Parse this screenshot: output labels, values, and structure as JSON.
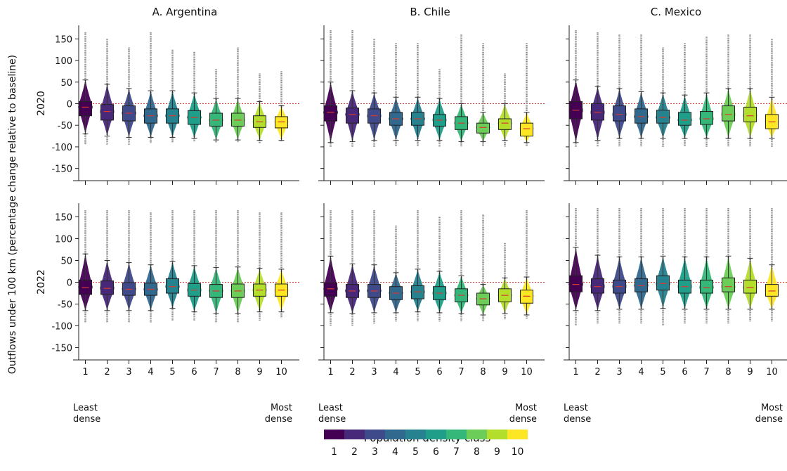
{
  "y_axis_label": "Outflows under 100 km (percentage change relative to baseline)",
  "row_labels": [
    "2020",
    "2022"
  ],
  "legend": {
    "title": "Population density class",
    "labels": [
      "1",
      "2",
      "3",
      "4",
      "5",
      "6",
      "7",
      "8",
      "9",
      "10"
    ]
  },
  "x_endpoint_labels": {
    "left": [
      "Least",
      "dense"
    ],
    "right": [
      "Most",
      "dense"
    ]
  },
  "colors": [
    "#440154",
    "#482878",
    "#3e4a89",
    "#31688e",
    "#26828e",
    "#1f9e89",
    "#35b779",
    "#6dcd59",
    "#b4de2c",
    "#fde725"
  ],
  "chart_data": [
    {
      "type": "violin",
      "title": "A. Argentina",
      "row": "2020",
      "categories": [
        "1",
        "2",
        "3",
        "4",
        "5",
        "6",
        "7",
        "8",
        "9",
        "10"
      ],
      "ylim": [
        -175,
        175
      ],
      "yticks": [
        -150,
        -100,
        -50,
        0,
        50,
        100,
        150
      ],
      "reference_line": 0,
      "median": [
        -8,
        -18,
        -22,
        -28,
        -28,
        -32,
        -38,
        -38,
        -42,
        -42
      ],
      "q1": [
        -28,
        -38,
        -40,
        -45,
        -45,
        -48,
        -52,
        -52,
        -55,
        -56
      ],
      "q3": [
        5,
        -2,
        -5,
        -12,
        -12,
        -16,
        -22,
        -22,
        -28,
        -30
      ],
      "whisker_low": [
        -70,
        -75,
        -78,
        -78,
        -78,
        -80,
        -84,
        -84,
        -85,
        -85
      ],
      "whisker_high": [
        55,
        45,
        35,
        30,
        30,
        25,
        12,
        12,
        5,
        -5
      ],
      "min": [
        -95,
        -95,
        -95,
        -92,
        -90,
        -88,
        -90,
        -90,
        -92,
        -88
      ],
      "max": [
        165,
        150,
        130,
        165,
        125,
        120,
        80,
        130,
        70,
        75
      ]
    },
    {
      "type": "violin",
      "title": "B. Chile",
      "row": "2020",
      "categories": [
        "1",
        "2",
        "3",
        "4",
        "5",
        "6",
        "7",
        "8",
        "9",
        "10"
      ],
      "ylim": [
        -175,
        175
      ],
      "yticks": [
        -150,
        -100,
        -50,
        0,
        50,
        100,
        150
      ],
      "reference_line": 0,
      "median": [
        -20,
        -25,
        -28,
        -35,
        -35,
        -38,
        -45,
        -55,
        -45,
        -58
      ],
      "q1": [
        -40,
        -45,
        -45,
        -50,
        -50,
        -52,
        -60,
        -68,
        -60,
        -75
      ],
      "q3": [
        -5,
        -10,
        -12,
        -20,
        -20,
        -25,
        -30,
        -45,
        -35,
        -45
      ],
      "whisker_low": [
        -90,
        -88,
        -85,
        -85,
        -85,
        -85,
        -88,
        -88,
        -85,
        -90
      ],
      "whisker_high": [
        50,
        30,
        25,
        15,
        15,
        12,
        0,
        -20,
        0,
        -20
      ],
      "min": [
        -100,
        -100,
        -100,
        -100,
        -100,
        -100,
        -100,
        -100,
        -100,
        -100
      ],
      "max": [
        170,
        170,
        150,
        140,
        140,
        80,
        160,
        140,
        70,
        140
      ]
    },
    {
      "type": "violin",
      "title": "C. Mexico",
      "row": "2020",
      "categories": [
        "1",
        "2",
        "3",
        "4",
        "5",
        "6",
        "7",
        "8",
        "9",
        "10"
      ],
      "ylim": [
        -175,
        175
      ],
      "yticks": [
        -150,
        -100,
        -50,
        0,
        50,
        100,
        150
      ],
      "reference_line": 0,
      "median": [
        -15,
        -20,
        -25,
        -30,
        -32,
        -38,
        -35,
        -25,
        -28,
        -42
      ],
      "q1": [
        -35,
        -38,
        -40,
        -45,
        -45,
        -50,
        -48,
        -40,
        -42,
        -58
      ],
      "q3": [
        5,
        0,
        -5,
        -12,
        -15,
        -20,
        -18,
        -5,
        -8,
        -25
      ],
      "whisker_low": [
        -90,
        -85,
        -80,
        -80,
        -80,
        -80,
        -80,
        -80,
        -80,
        -80
      ],
      "whisker_high": [
        55,
        40,
        35,
        28,
        25,
        20,
        25,
        35,
        35,
        15
      ],
      "min": [
        -100,
        -100,
        -100,
        -100,
        -100,
        -100,
        -100,
        -100,
        -100,
        -100
      ],
      "max": [
        170,
        165,
        160,
        160,
        130,
        140,
        155,
        160,
        160,
        150
      ]
    },
    {
      "type": "violin",
      "title": "",
      "row": "2022",
      "categories": [
        "1",
        "2",
        "3",
        "4",
        "5",
        "6",
        "7",
        "8",
        "9",
        "10"
      ],
      "ylim": [
        -175,
        175
      ],
      "yticks": [
        -150,
        -100,
        -50,
        0,
        50,
        100,
        150
      ],
      "reference_line": 0,
      "median": [
        -12,
        -14,
        -16,
        -16,
        -10,
        -18,
        -20,
        -20,
        -18,
        -18
      ],
      "q1": [
        -28,
        -28,
        -30,
        -30,
        -25,
        -32,
        -35,
        -35,
        -32,
        -32
      ],
      "q3": [
        5,
        3,
        -1,
        -2,
        8,
        -3,
        -5,
        -4,
        -4,
        -4
      ],
      "whisker_low": [
        -65,
        -65,
        -65,
        -65,
        -60,
        -68,
        -72,
        -72,
        -68,
        -68
      ],
      "whisker_high": [
        65,
        50,
        45,
        40,
        48,
        38,
        34,
        35,
        32,
        30
      ],
      "min": [
        -92,
        -92,
        -92,
        -92,
        -88,
        -88,
        -92,
        -92,
        -88,
        -82
      ],
      "max": [
        165,
        165,
        165,
        160,
        165,
        165,
        165,
        165,
        160,
        160
      ]
    },
    {
      "type": "violin",
      "title": "",
      "row": "2022",
      "categories": [
        "1",
        "2",
        "3",
        "4",
        "5",
        "6",
        "7",
        "8",
        "9",
        "10"
      ],
      "ylim": [
        -175,
        175
      ],
      "yticks": [
        -150,
        -100,
        -50,
        0,
        50,
        100,
        150
      ],
      "reference_line": 0,
      "median": [
        -15,
        -20,
        -20,
        -25,
        -22,
        -25,
        -30,
        -38,
        -30,
        -32
      ],
      "q1": [
        -32,
        -35,
        -35,
        -40,
        -38,
        -40,
        -45,
        -52,
        -45,
        -48
      ],
      "q3": [
        -2,
        -5,
        -5,
        -10,
        -8,
        -10,
        -15,
        -25,
        -15,
        -18
      ],
      "whisker_low": [
        -70,
        -72,
        -70,
        -70,
        -68,
        -70,
        -72,
        -75,
        -72,
        -75
      ],
      "whisker_high": [
        60,
        42,
        40,
        22,
        30,
        25,
        15,
        -5,
        10,
        12
      ],
      "min": [
        -100,
        -100,
        -95,
        -90,
        -90,
        -90,
        -90,
        -90,
        -85,
        -85
      ],
      "max": [
        165,
        165,
        165,
        130,
        165,
        150,
        165,
        155,
        90,
        165
      ]
    },
    {
      "type": "violin",
      "title": "",
      "row": "2022",
      "categories": [
        "1",
        "2",
        "3",
        "4",
        "5",
        "6",
        "7",
        "8",
        "9",
        "10"
      ],
      "ylim": [
        -175,
        175
      ],
      "yticks": [
        -150,
        -100,
        -50,
        0,
        50,
        100,
        150
      ],
      "reference_line": 0,
      "median": [
        -5,
        -10,
        -10,
        -8,
        -3,
        -10,
        -12,
        -10,
        -12,
        -20
      ],
      "q1": [
        -22,
        -25,
        -25,
        -22,
        -18,
        -25,
        -25,
        -22,
        -25,
        -32
      ],
      "q3": [
        15,
        8,
        5,
        8,
        15,
        5,
        5,
        10,
        5,
        -5
      ],
      "whisker_low": [
        -65,
        -65,
        -62,
        -62,
        -60,
        -62,
        -62,
        -62,
        -62,
        -62
      ],
      "whisker_high": [
        80,
        62,
        58,
        58,
        60,
        58,
        58,
        60,
        55,
        40
      ],
      "min": [
        -100,
        -95,
        -95,
        -95,
        -100,
        -95,
        -95,
        -95,
        -90,
        -90
      ],
      "max": [
        170,
        170,
        170,
        170,
        170,
        170,
        170,
        170,
        170,
        170
      ]
    }
  ]
}
